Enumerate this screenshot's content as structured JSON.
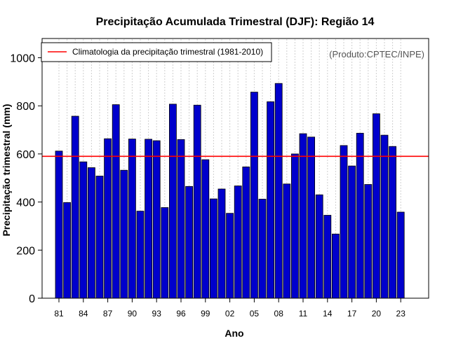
{
  "chart_data": {
    "type": "bar",
    "title": "Precipitação Acumulada Trimestral (DJF): Região 14",
    "xlabel": "Ano",
    "ylabel": "Precipitação trimestral (mm)",
    "credit": "(Produto:CPTEC/INPE)",
    "ylim": [
      0,
      1080
    ],
    "yticks": [
      0,
      200,
      400,
      600,
      800,
      1000
    ],
    "categories": [
      "81",
      "82",
      "83",
      "84",
      "85",
      "86",
      "87",
      "88",
      "89",
      "90",
      "91",
      "92",
      "93",
      "94",
      "95",
      "96",
      "97",
      "98",
      "99",
      "00",
      "01",
      "02",
      "03",
      "04",
      "05",
      "06",
      "07",
      "08",
      "09",
      "10",
      "11",
      "12",
      "13",
      "14",
      "15",
      "16",
      "17",
      "18",
      "19",
      "20",
      "21",
      "22",
      "23"
    ],
    "xtick_labels": [
      "81",
      "84",
      "87",
      "90",
      "93",
      "96",
      "99",
      "02",
      "05",
      "08",
      "11",
      "14",
      "17",
      "20",
      "23"
    ],
    "series": [
      {
        "name": "Precipitação trimestral",
        "color": "#0000cc",
        "values": [
          612,
          398,
          757,
          567,
          543,
          508,
          663,
          805,
          532,
          662,
          362,
          661,
          655,
          377,
          807,
          660,
          465,
          803,
          576,
          413,
          454,
          353,
          467,
          546,
          857,
          412,
          817,
          893,
          475,
          600,
          684,
          670,
          430,
          345,
          267,
          635,
          550,
          686,
          473,
          767,
          678,
          631,
          358
        ]
      }
    ],
    "climatology": {
      "label": "Climatologia da precipitação trimestral (1981-2010)",
      "value": 590,
      "color": "#ff0000"
    },
    "grid": true,
    "legend_position": "top-left"
  }
}
